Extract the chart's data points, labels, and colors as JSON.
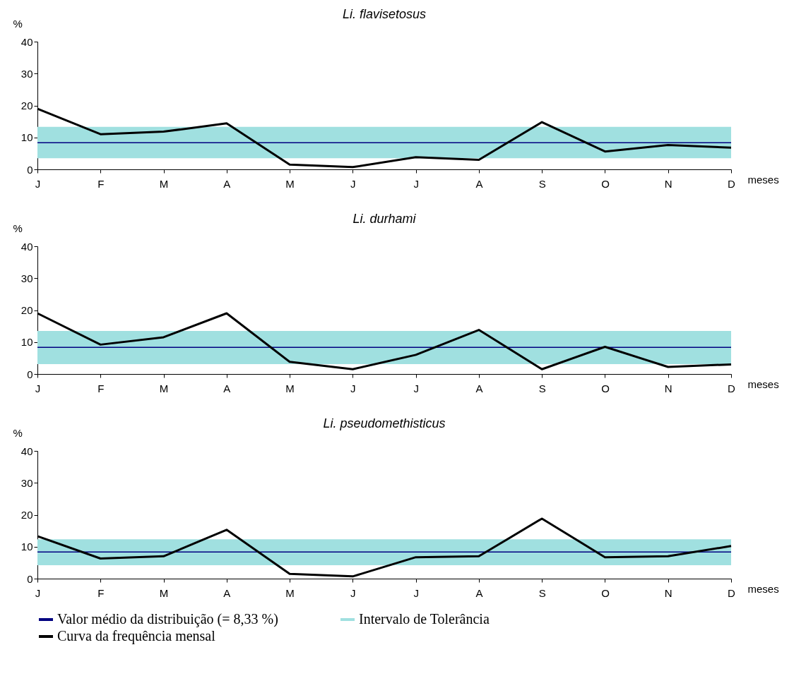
{
  "chart_data": [
    {
      "type": "line",
      "title": "Li. flavisetosus",
      "xlabel": "meses",
      "ylabel": "%",
      "categories": [
        "J",
        "F",
        "M",
        "A",
        "M",
        "J",
        "J",
        "A",
        "S",
        "O",
        "N",
        "D"
      ],
      "series": [
        {
          "color": "#000000",
          "values": [
            19,
            11,
            11.8,
            14.4,
            1.5,
            0.7,
            3.8,
            3,
            14.8,
            5.6,
            7.6,
            6.8
          ]
        }
      ],
      "ylim": [
        0,
        40
      ],
      "yticks": [
        0,
        10,
        20,
        30,
        40
      ],
      "ref_lines": [
        {
          "axis": "y",
          "value": 8.33,
          "color": "#000080"
        }
      ],
      "bands": [
        {
          "axis": "y",
          "from": 3.5,
          "to": 13.3,
          "color": "#a0e0e0"
        }
      ]
    },
    {
      "type": "line",
      "title": "Li. durhami",
      "xlabel": "meses",
      "ylabel": "%",
      "categories": [
        "J",
        "F",
        "M",
        "A",
        "M",
        "J",
        "J",
        "A",
        "S",
        "O",
        "N",
        "D"
      ],
      "series": [
        {
          "color": "#000000",
          "values": [
            19,
            9.2,
            11.5,
            19,
            3.8,
            1.5,
            6,
            13.8,
            1.5,
            8.5,
            2.2,
            3
          ]
        }
      ],
      "ylim": [
        0,
        40
      ],
      "yticks": [
        0,
        10,
        20,
        30,
        40
      ],
      "ref_lines": [
        {
          "axis": "y",
          "value": 8.33,
          "color": "#000080"
        }
      ],
      "bands": [
        {
          "axis": "y",
          "from": 3.1,
          "to": 13.5,
          "color": "#a0e0e0"
        }
      ]
    },
    {
      "type": "line",
      "title": "Li. pseudomethisticus",
      "xlabel": "meses",
      "ylabel": "%",
      "categories": [
        "J",
        "F",
        "M",
        "A",
        "M",
        "J",
        "J",
        "A",
        "S",
        "O",
        "N",
        "D"
      ],
      "series": [
        {
          "name": "Curva da frequência mensal",
          "color": "#000000",
          "values": [
            13.3,
            6.3,
            7,
            15.3,
            1.5,
            0.7,
            6.7,
            7,
            18.8,
            6.7,
            7,
            10.2
          ]
        }
      ],
      "ylim": [
        0,
        40
      ],
      "yticks": [
        0,
        10,
        20,
        30,
        40
      ],
      "ref_lines": [
        {
          "axis": "y",
          "value": 8.33,
          "label": "Valor médio da distribuição (= 8,33 %)",
          "color": "#000080"
        }
      ],
      "bands": [
        {
          "axis": "y",
          "from": 4.2,
          "to": 12.3,
          "label": "Intervalo de Tolerância",
          "color": "#a0e0e0"
        }
      ],
      "legend": "bottom"
    }
  ]
}
